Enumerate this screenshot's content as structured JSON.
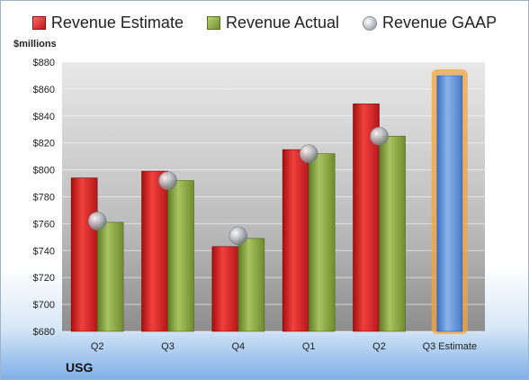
{
  "legend": {
    "estimate": "Revenue Estimate",
    "actual": "Revenue Actual",
    "gaap": "Revenue GAAP"
  },
  "colors": {
    "estimate": "#d42024",
    "actual": "#8aaa3c",
    "gaap": "#b5b8bf",
    "highlight_bar": "#5b8fd6",
    "highlight_glow": "#f4a63a"
  },
  "chart_data": {
    "type": "bar",
    "title": "",
    "xlabel": "",
    "ylabel": "$millions",
    "company": "USG",
    "categories": [
      "Q2",
      "Q3",
      "Q4",
      "Q1",
      "Q2",
      "Q3 Estimate"
    ],
    "series": [
      {
        "name": "Revenue Estimate",
        "values": [
          794,
          799,
          743,
          815,
          849,
          null
        ]
      },
      {
        "name": "Revenue Actual",
        "values": [
          761,
          792,
          749,
          812,
          825,
          null
        ]
      },
      {
        "name": "Revenue GAAP",
        "values": [
          762,
          792,
          751,
          812,
          825,
          null
        ]
      }
    ],
    "forecast": {
      "category": "Q3 Estimate",
      "value": 870
    },
    "ylim": [
      680,
      880
    ],
    "yticks": [
      "$680",
      "$700",
      "$720",
      "$740",
      "$760",
      "$780",
      "$800",
      "$820",
      "$840",
      "$860",
      "$880"
    ],
    "grid": true,
    "legend_position": "top"
  }
}
